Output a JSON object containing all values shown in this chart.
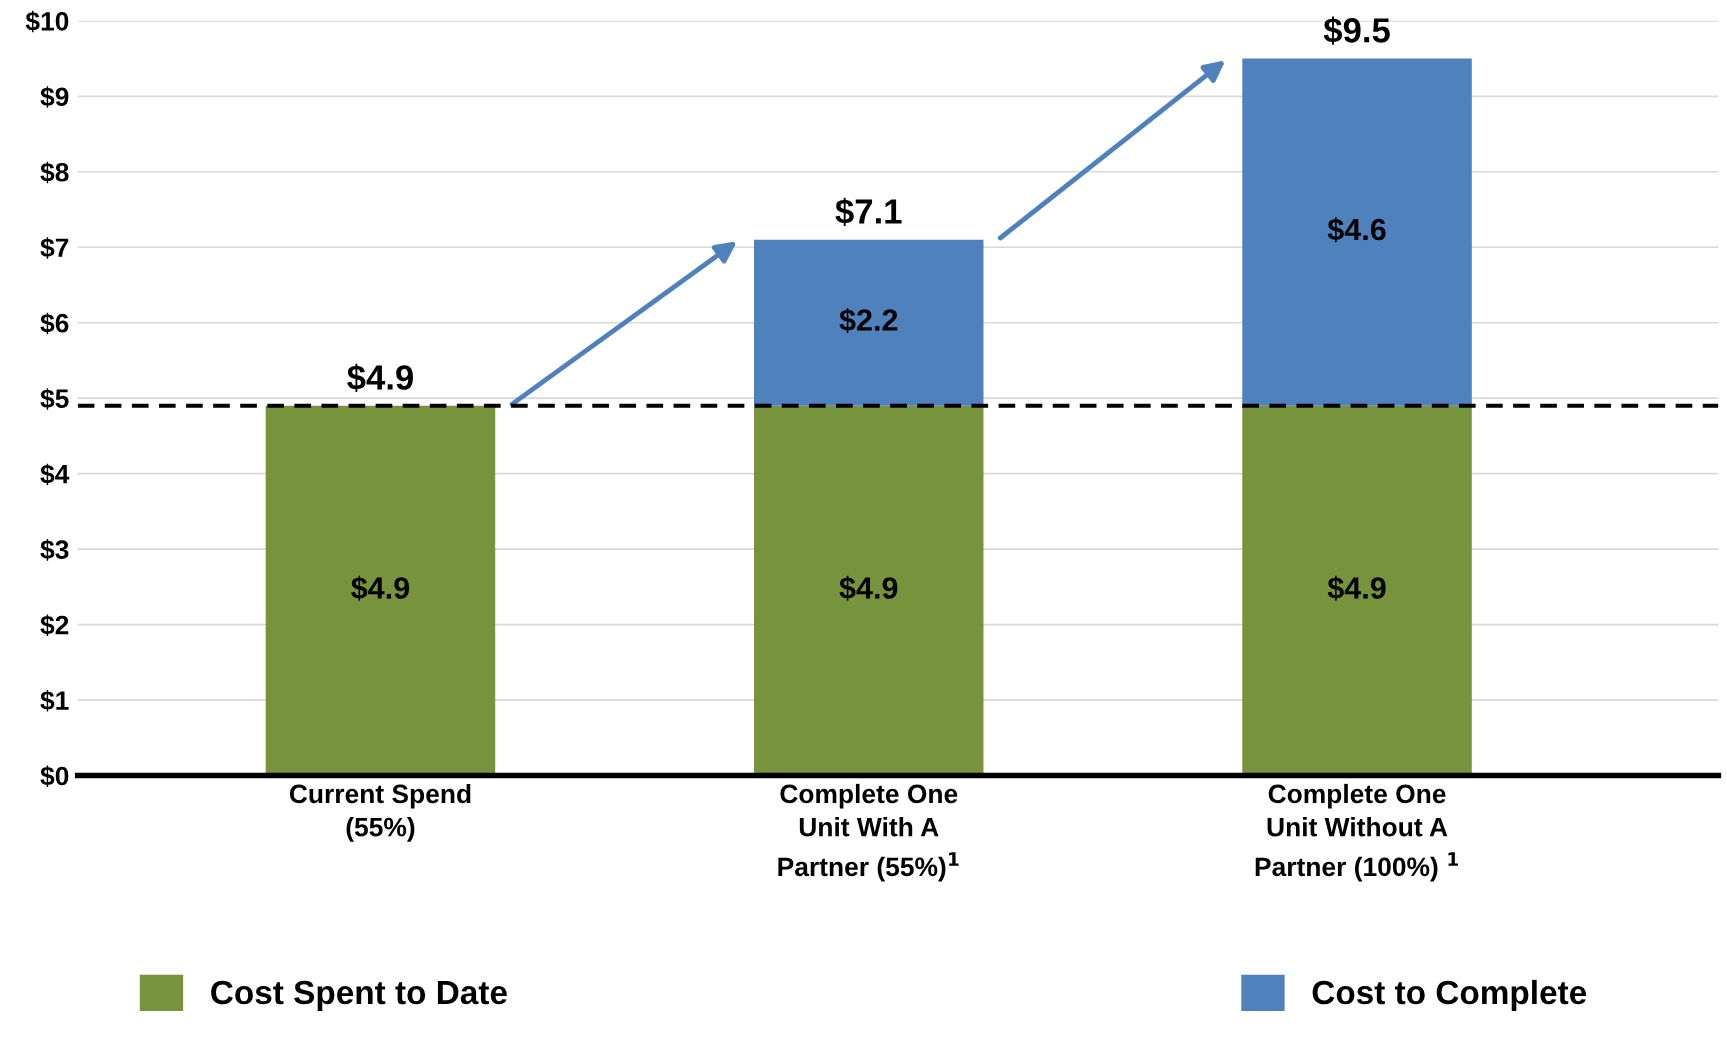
{
  "chart_data": {
    "type": "bar",
    "stacked": true,
    "categories": [
      "Current Spend\n(55%)",
      "Complete One\nUnit With A\nPartner (55%)$^{1}$",
      "Complete One\nUnit Without A\nPartner (100%) $^{1}$"
    ],
    "series": [
      {
        "name": "Cost Spent to Date",
        "color": "#77933c",
        "values": [
          4.9,
          4.9,
          4.9
        ],
        "value_labels": [
          "$4.9",
          "$4.9",
          "$4.9"
        ]
      },
      {
        "name": "Cost to Complete",
        "color": "#4f81bd",
        "values": [
          null,
          2.2,
          4.6
        ],
        "value_labels": [
          null,
          "$2.2",
          "$4.6"
        ]
      }
    ],
    "totals": [
      "$4.9",
      "$7.1",
      "$9.5"
    ],
    "ylim": [
      0,
      10
    ],
    "yticks": [
      {
        "value": 0,
        "label": "$0"
      },
      {
        "value": 1,
        "label": "$1"
      },
      {
        "value": 2,
        "label": "$2"
      },
      {
        "value": 3,
        "label": "$3"
      },
      {
        "value": 4,
        "label": "$4"
      },
      {
        "value": 5,
        "label": "$5"
      },
      {
        "value": 6,
        "label": "$6"
      },
      {
        "value": 7,
        "label": "$7"
      },
      {
        "value": 8,
        "label": "$8"
      },
      {
        "value": 9,
        "label": "$9"
      },
      {
        "value": 10,
        "label": "$10"
      }
    ],
    "ref_lines": [
      {
        "axis": "y",
        "value": 4.9,
        "label": null,
        "color": "#000000",
        "line_style": "dashed"
      }
    ],
    "grid": "y",
    "legend": "bottom"
  }
}
